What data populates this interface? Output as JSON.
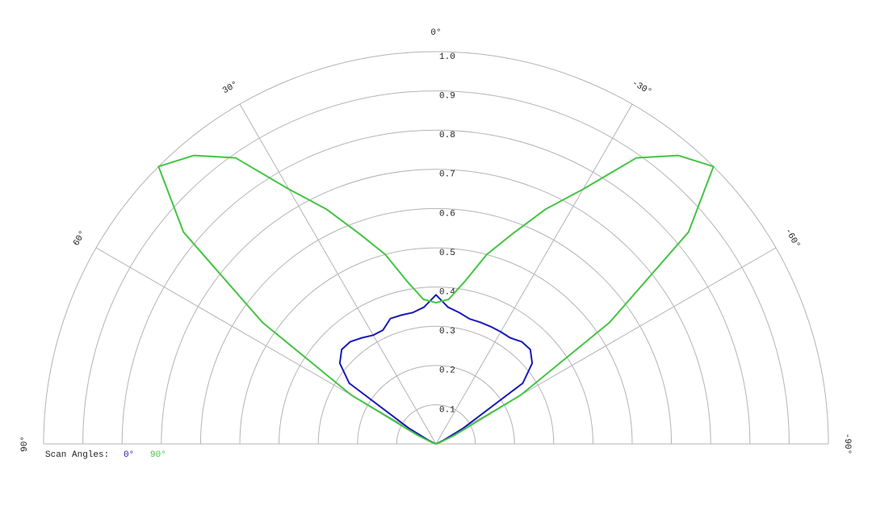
{
  "chart_data": {
    "type": "polar",
    "x": [
      90,
      85,
      80,
      75,
      70,
      65,
      60,
      55,
      50,
      45,
      40,
      35,
      30,
      25,
      20,
      15,
      10,
      5,
      0,
      -5,
      -10,
      -15,
      -20,
      -25,
      -30,
      -35,
      -40,
      -45,
      -50,
      -55,
      -60,
      -65,
      -70,
      -75,
      -80,
      -85,
      -90
    ],
    "series": [
      {
        "name": "0°",
        "color": "#1a1ab8",
        "values": [
          0,
          0,
          0,
          0,
          0,
          0.02,
          0.08,
          0.27,
          0.32,
          0.34,
          0.34,
          0.33,
          0.32,
          0.32,
          0.34,
          0.34,
          0.34,
          0.35,
          0.38,
          0.35,
          0.34,
          0.33,
          0.33,
          0.33,
          0.33,
          0.33,
          0.34,
          0.34,
          0.32,
          0.27,
          0.08,
          0.02,
          0,
          0,
          0,
          0,
          0
        ]
      },
      {
        "name": "90°",
        "color": "#44c444",
        "values": [
          0,
          0,
          0,
          0,
          0.01,
          0.05,
          0.25,
          0.54,
          0.84,
          1.0,
          0.96,
          0.89,
          0.75,
          0.66,
          0.57,
          0.5,
          0.42,
          0.37,
          0.36,
          0.37,
          0.42,
          0.5,
          0.57,
          0.66,
          0.75,
          0.89,
          0.96,
          1.0,
          0.84,
          0.54,
          0.25,
          0.05,
          0.01,
          0,
          0,
          0,
          0
        ]
      }
    ],
    "ylim": [
      0,
      1
    ],
    "yticks": [
      0.1,
      0.2,
      0.3,
      0.4,
      0.5,
      0.6,
      0.7,
      0.8,
      0.9,
      {
        "value": 1,
        "label": "1.0"
      }
    ],
    "xlim": [
      90,
      -90
    ],
    "xticks": [
      {
        "value": 90,
        "label": "90°"
      },
      {
        "value": 60,
        "label": "60°"
      },
      {
        "value": 30,
        "label": "30°"
      },
      {
        "value": 0,
        "label": "0°"
      },
      {
        "value": -30,
        "label": "-30°"
      },
      {
        "value": -60,
        "label": "-60°"
      },
      {
        "value": -90,
        "label": "-90°"
      }
    ],
    "legend_title": "Scan Angles:",
    "grid": true
  }
}
